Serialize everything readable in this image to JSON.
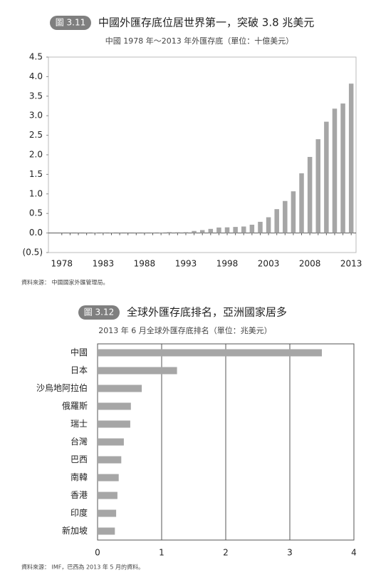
{
  "chart_data": [
    {
      "type": "bar",
      "figure_label": "圖 3.11",
      "title": "中國外匯存底位居世界第一，突破 3.8 兆美元",
      "subtitle": "中國 1978 年～2013 年外匯存底（單位：十億美元）",
      "categories": [
        "1978",
        null,
        null,
        null,
        null,
        "1983",
        null,
        null,
        null,
        null,
        "1988",
        null,
        null,
        null,
        null,
        "1993",
        null,
        null,
        null,
        null,
        "1998",
        null,
        null,
        null,
        null,
        "2003",
        null,
        null,
        null,
        null,
        "2008",
        null,
        null,
        null,
        null,
        "2013"
      ],
      "values": [
        0.002,
        0.002,
        0.003,
        0.005,
        0.011,
        0.014,
        0.008,
        0.003,
        0.002,
        0.003,
        0.003,
        0.006,
        0.011,
        0.022,
        0.019,
        0.021,
        0.052,
        0.074,
        0.105,
        0.14,
        0.145,
        0.155,
        0.166,
        0.212,
        0.286,
        0.403,
        0.61,
        0.819,
        1.066,
        1.528,
        1.946,
        2.399,
        2.847,
        3.181,
        3.312,
        3.821
      ],
      "color": "#a6a6a6",
      "ylim": [
        -0.5,
        4.5
      ],
      "yticks": [
        {
          "value": -0.5,
          "label": "(0.5)"
        },
        {
          "value": 0,
          "label": "0.0"
        },
        0.5,
        {
          "value": 1,
          "label": "1.0"
        },
        1.5,
        {
          "value": 2,
          "label": "2.0"
        },
        2.5,
        {
          "value": 3,
          "label": "3.0"
        },
        3.5,
        {
          "value": 4,
          "label": "4.0"
        },
        4.5
      ],
      "source": "資料來源： 中國國家外匯管理局。"
    },
    {
      "type": "hbar",
      "figure_label": "圖 3.12",
      "title": "全球外匯存底排名，亞洲國家居多",
      "subtitle": "2013 年 6 月全球外匯存底排名（單位：兆美元）",
      "categories": [
        "中國",
        "日本",
        "沙烏地阿拉伯",
        "俄羅斯",
        "瑞士",
        "台灣",
        "巴西",
        "南韓",
        "香港",
        "印度",
        "新加坡"
      ],
      "values": [
        3.5,
        1.24,
        0.69,
        0.52,
        0.51,
        0.41,
        0.37,
        0.33,
        0.31,
        0.29,
        0.27
      ],
      "color": "#a6a6a6",
      "xlim": [
        0,
        4
      ],
      "xticks": [
        0,
        1,
        2,
        3,
        4
      ],
      "grid": true,
      "source": "資料來源： IMF，巴西為 2013 年 5 月的資料。"
    }
  ]
}
